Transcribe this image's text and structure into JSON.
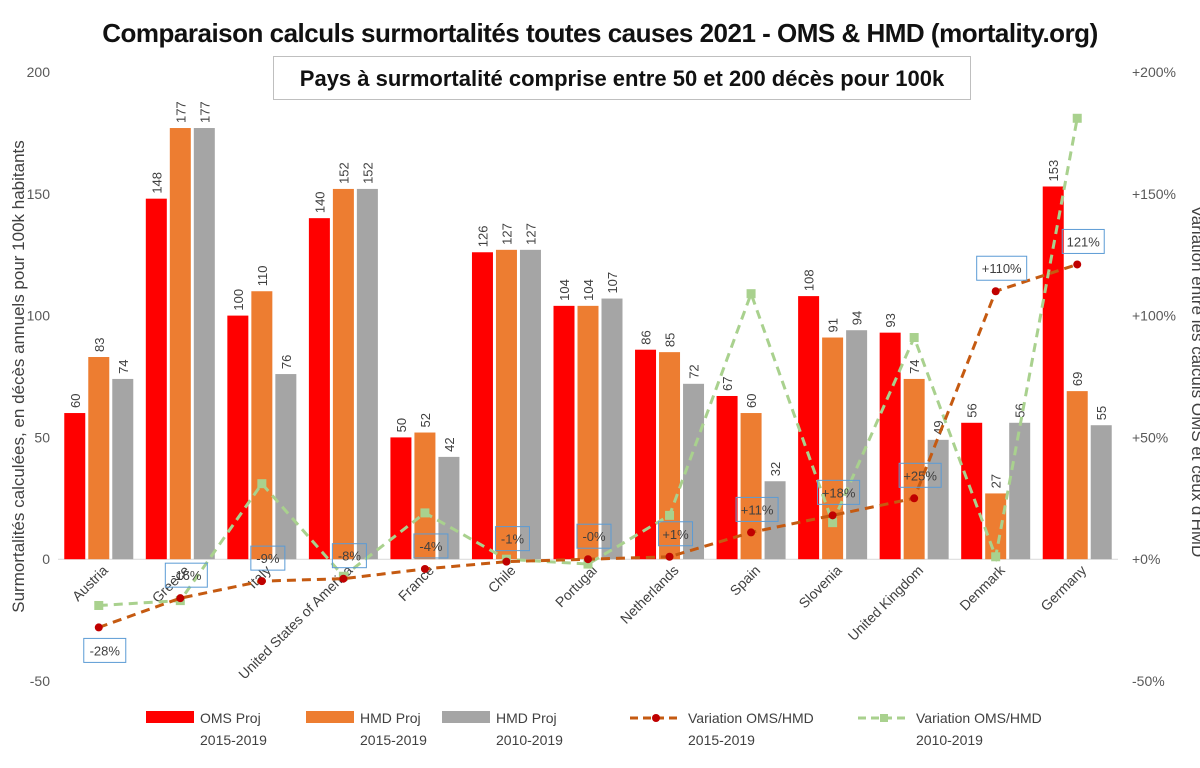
{
  "chart_data": {
    "type": "bar",
    "title": "Comparaison calculs surmortalités toutes causes 2021 -  OMS & HMD (mortality.org)",
    "subtitle": "Pays à surmortalité comprise entre 50 et 200 décès pour 100k",
    "ylabel": "Surmortalités calculées, en décès annuels pour 100k habitants",
    "y2label": "Variation entre les calculs OMS et ceux d'HMD",
    "ylim": [
      -50,
      200
    ],
    "yticks": [
      "-50",
      "0",
      "50",
      "100",
      "150",
      "200"
    ],
    "y2lim": [
      -50,
      200
    ],
    "y2ticks": [
      "-50%",
      "+0%",
      "+50%",
      "+100%",
      "+150%",
      "+200%"
    ],
    "grid": false,
    "legend_position": "bottom",
    "categories": [
      "Austria",
      "Greece",
      "Italy",
      "United States of America",
      "France",
      "Chile",
      "Portugal",
      "Netherlands",
      "Spain",
      "Slovenia",
      "United Kingdom",
      "Denmark",
      "Germany"
    ],
    "series": [
      {
        "name": "OMS Proj 2015-2019",
        "type": "bar",
        "color": "#ff0000",
        "values": [
          60,
          148,
          100,
          140,
          50,
          126,
          104,
          86,
          67,
          108,
          93,
          56,
          153
        ]
      },
      {
        "name": "HMD Proj 2015-2019",
        "type": "bar",
        "color": "#ed7d31",
        "values": [
          83,
          177,
          110,
          152,
          52,
          127,
          104,
          85,
          60,
          91,
          74,
          27,
          69
        ]
      },
      {
        "name": "HMD Proj 2010-2019",
        "type": "bar",
        "color": "#a5a5a5",
        "values": [
          74,
          177,
          76,
          152,
          42,
          127,
          107,
          72,
          32,
          94,
          49,
          56,
          55
        ]
      },
      {
        "name": "Variation OMS/HMD 2015-2019",
        "type": "line",
        "axis": "secondary",
        "color": "#c55a11",
        "marker_color": "#c00000",
        "values": [
          -28,
          -16,
          -9,
          -8,
          -4,
          -1,
          0,
          1,
          11,
          18,
          25,
          110,
          121
        ],
        "labels": [
          "-28%",
          "-16%",
          "-9%",
          "-8%",
          "-4%",
          "-1%",
          "-0%",
          "+1%",
          "+11%",
          "+18%",
          "+25%",
          "+110%",
          "121%"
        ]
      },
      {
        "name": "Variation OMS/HMD 2010-2019",
        "type": "line",
        "axis": "secondary",
        "color": "#a9d18e",
        "values": [
          -19,
          -17,
          31,
          -7,
          19,
          0,
          -2,
          18,
          109,
          15,
          91,
          1,
          181
        ]
      }
    ]
  }
}
